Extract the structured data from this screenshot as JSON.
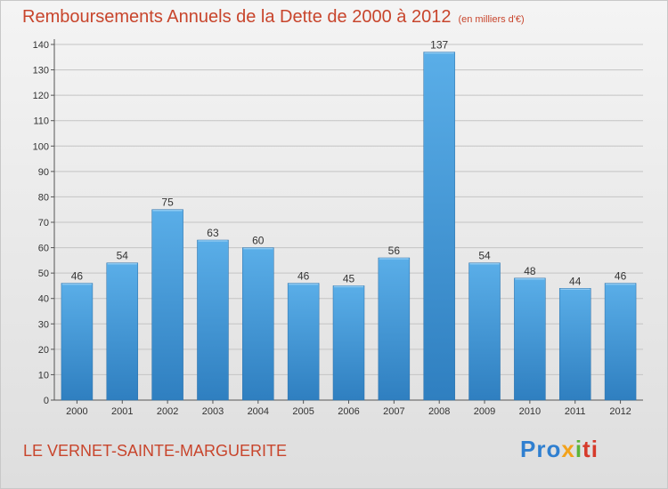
{
  "title": "Remboursements Annuels de la Dette de 2000 à 2012",
  "subtitle": "(en milliers d'€)",
  "commune": "LE VERNET-SAINTE-MARGUERITE",
  "logo": {
    "text": "Proxiti",
    "colors": [
      "#2f7fd0",
      "#f2a21b",
      "#5bb53a",
      "#d63a2a"
    ]
  },
  "colors": {
    "bar_top": "#5aaee8",
    "bar_bottom": "#2f7fc0",
    "title": "#c8452c"
  },
  "chart_data": {
    "type": "bar",
    "categories": [
      "2000",
      "2001",
      "2002",
      "2003",
      "2004",
      "2005",
      "2006",
      "2007",
      "2008",
      "2009",
      "2010",
      "2011",
      "2012"
    ],
    "values": [
      46,
      54,
      75,
      63,
      60,
      46,
      45,
      56,
      137,
      54,
      48,
      44,
      46
    ],
    "data_labels": [
      "46",
      "54",
      "75",
      "63",
      "60",
      "46",
      "45",
      "56",
      "137",
      "54",
      "48",
      "44",
      "46"
    ],
    "title": "Remboursements Annuels de la Dette de 2000 à 2012",
    "subtitle": "(en milliers d'€)",
    "xlabel": "",
    "ylabel": "",
    "ylim": [
      0,
      140
    ],
    "yticks": [
      0,
      10,
      20,
      30,
      40,
      50,
      60,
      70,
      80,
      90,
      100,
      110,
      120,
      130,
      140
    ],
    "grid": true,
    "legend": "none"
  }
}
